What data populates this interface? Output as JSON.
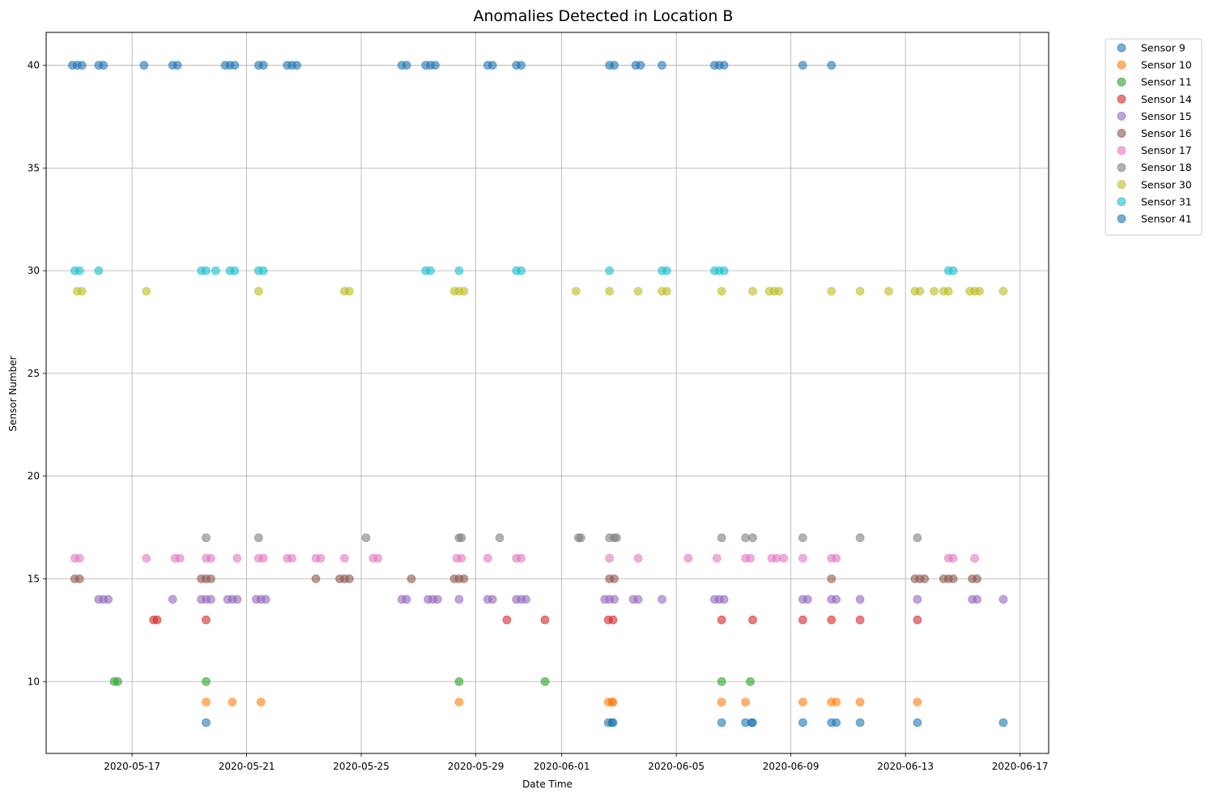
{
  "chart_data": {
    "type": "scatter",
    "title": "Anomalies Detected in Location B",
    "xlabel": "Date Time",
    "ylabel": "Sensor Number",
    "xlim": [
      "2020-05-14T00:00",
      "2020-06-18T00:00"
    ],
    "ylim": [
      6.5,
      41.6
    ],
    "x_ticks": [
      "2020-05-17",
      "2020-05-21",
      "2020-05-25",
      "2020-05-29",
      "2020-06-01",
      "2020-06-05",
      "2020-06-09",
      "2020-06-13",
      "2020-06-17"
    ],
    "y_ticks": [
      10,
      15,
      20,
      25,
      30,
      35,
      40
    ],
    "grid": true,
    "legend_position": "outside-upper-right",
    "series": [
      {
        "name": "Sensor 9",
        "color": "#1f77b4",
        "y": 8,
        "x": [
          "2020-05-19T14:00",
          "2020-06-02T15:00",
          "2020-06-02T18:00",
          "2020-06-02T19:00",
          "2020-06-06T14:00",
          "2020-06-07T10:00",
          "2020-06-07T15:00",
          "2020-06-07T16:00",
          "2020-06-09T10:00",
          "2020-06-10T10:00",
          "2020-06-10T14:00",
          "2020-06-11T10:00",
          "2020-06-13T10:00",
          "2020-06-16T10:00"
        ]
      },
      {
        "name": "Sensor 10",
        "color": "#ff7f0e",
        "y": 9,
        "x": [
          "2020-05-19T14:00",
          "2020-05-20T12:00",
          "2020-05-21T12:00",
          "2020-05-28T10:00",
          "2020-06-02T15:00",
          "2020-06-02T18:00",
          "2020-06-02T19:00",
          "2020-06-06T14:00",
          "2020-06-07T10:00",
          "2020-06-09T10:00",
          "2020-06-10T10:00",
          "2020-06-10T14:00",
          "2020-06-11T10:00",
          "2020-06-13T10:00"
        ]
      },
      {
        "name": "Sensor 11",
        "color": "#2ca02c",
        "y": 10,
        "x": [
          "2020-05-16T09:00",
          "2020-05-16T12:00",
          "2020-05-19T14:00",
          "2020-05-28T10:00",
          "2020-05-31T10:00",
          "2020-06-06T14:00",
          "2020-06-07T14:00"
        ]
      },
      {
        "name": "Sensor 14",
        "color": "#d62728",
        "y": 13,
        "x": [
          "2020-05-17T18:00",
          "2020-05-17T21:00",
          "2020-05-19T14:00",
          "2020-05-30T02:00",
          "2020-05-31T10:00",
          "2020-06-02T15:00",
          "2020-06-02T19:00",
          "2020-06-06T14:00",
          "2020-06-07T16:00",
          "2020-06-09T10:00",
          "2020-06-10T10:00",
          "2020-06-11T10:00",
          "2020-06-13T10:00"
        ]
      },
      {
        "name": "Sensor 15",
        "color": "#9467bd",
        "y": 14,
        "x": [
          "2020-05-15T20:00",
          "2020-05-16T00:00",
          "2020-05-16T04:00",
          "2020-05-18T10:00",
          "2020-05-19T10:00",
          "2020-05-19T14:00",
          "2020-05-19T18:00",
          "2020-05-20T08:00",
          "2020-05-20T12:00",
          "2020-05-20T16:00",
          "2020-05-21T08:00",
          "2020-05-21T12:00",
          "2020-05-21T16:00",
          "2020-05-26T10:00",
          "2020-05-26T14:00",
          "2020-05-27T08:00",
          "2020-05-27T12:00",
          "2020-05-27T16:00",
          "2020-05-28T10:00",
          "2020-05-29T10:00",
          "2020-05-29T14:00",
          "2020-05-30T10:00",
          "2020-05-30T14:00",
          "2020-05-30T18:00",
          "2020-06-02T12:00",
          "2020-06-02T16:00",
          "2020-06-02T20:00",
          "2020-06-03T12:00",
          "2020-06-03T16:00",
          "2020-06-04T12:00",
          "2020-06-06T08:00",
          "2020-06-06T12:00",
          "2020-06-06T16:00",
          "2020-06-09T10:00",
          "2020-06-09T14:00",
          "2020-06-10T10:00",
          "2020-06-10T14:00",
          "2020-06-11T10:00",
          "2020-06-13T10:00",
          "2020-06-15T08:00",
          "2020-06-15T12:00",
          "2020-06-16T10:00"
        ]
      },
      {
        "name": "Sensor 16",
        "color": "#8c564b",
        "y": 15,
        "x": [
          "2020-05-15T00:00",
          "2020-05-15T04:00",
          "2020-05-19T10:00",
          "2020-05-19T14:00",
          "2020-05-19T18:00",
          "2020-05-23T10:00",
          "2020-05-24T06:00",
          "2020-05-24T10:00",
          "2020-05-24T14:00",
          "2020-05-26T18:00",
          "2020-05-28T06:00",
          "2020-05-28T10:00",
          "2020-05-28T14:00",
          "2020-06-02T16:00",
          "2020-06-02T20:00",
          "2020-06-10T10:00",
          "2020-06-13T08:00",
          "2020-06-13T12:00",
          "2020-06-13T16:00",
          "2020-06-14T08:00",
          "2020-06-14T12:00",
          "2020-06-14T16:00",
          "2020-06-15T08:00",
          "2020-06-15T12:00"
        ]
      },
      {
        "name": "Sensor 17",
        "color": "#e377c2",
        "y": 16,
        "x": [
          "2020-05-15T00:00",
          "2020-05-15T04:00",
          "2020-05-17T12:00",
          "2020-05-18T12:00",
          "2020-05-18T16:00",
          "2020-05-19T14:00",
          "2020-05-19T18:00",
          "2020-05-20T16:00",
          "2020-05-21T10:00",
          "2020-05-21T14:00",
          "2020-05-22T10:00",
          "2020-05-22T14:00",
          "2020-05-23T10:00",
          "2020-05-23T14:00",
          "2020-05-24T10:00",
          "2020-05-25T10:00",
          "2020-05-25T14:00",
          "2020-05-28T08:00",
          "2020-05-28T12:00",
          "2020-05-29T10:00",
          "2020-05-30T10:00",
          "2020-05-30T14:00",
          "2020-06-02T16:00",
          "2020-06-03T16:00",
          "2020-06-05T10:00",
          "2020-06-06T10:00",
          "2020-06-07T10:00",
          "2020-06-07T14:00",
          "2020-06-08T08:00",
          "2020-06-08T12:00",
          "2020-06-08T18:00",
          "2020-06-09T10:00",
          "2020-06-10T10:00",
          "2020-06-10T14:00",
          "2020-06-14T12:00",
          "2020-06-14T16:00",
          "2020-06-15T10:00"
        ]
      },
      {
        "name": "Sensor 18",
        "color": "#7f7f7f",
        "y": 17,
        "x": [
          "2020-05-19T14:00",
          "2020-05-21T10:00",
          "2020-05-25T04:00",
          "2020-05-28T10:00",
          "2020-05-28T12:00",
          "2020-05-29T20:00",
          "2020-06-01T14:00",
          "2020-06-01T16:00",
          "2020-06-02T16:00",
          "2020-06-02T20:00",
          "2020-06-02T22:00",
          "2020-06-06T14:00",
          "2020-06-07T10:00",
          "2020-06-07T16:00",
          "2020-06-09T10:00",
          "2020-06-11T10:00",
          "2020-06-13T10:00"
        ]
      },
      {
        "name": "Sensor 30",
        "color": "#bcbd22",
        "y": 29,
        "x": [
          "2020-05-15T02:00",
          "2020-05-15T06:00",
          "2020-05-17T12:00",
          "2020-05-21T10:00",
          "2020-05-24T10:00",
          "2020-05-24T14:00",
          "2020-05-28T06:00",
          "2020-05-28T10:00",
          "2020-05-28T14:00",
          "2020-06-01T12:00",
          "2020-06-02T16:00",
          "2020-06-03T16:00",
          "2020-06-04T12:00",
          "2020-06-04T16:00",
          "2020-06-06T14:00",
          "2020-06-07T16:00",
          "2020-06-08T06:00",
          "2020-06-08T10:00",
          "2020-06-08T14:00",
          "2020-06-10T10:00",
          "2020-06-11T10:00",
          "2020-06-12T10:00",
          "2020-06-13T08:00",
          "2020-06-13T12:00",
          "2020-06-14T00:00",
          "2020-06-14T08:00",
          "2020-06-14T12:00",
          "2020-06-15T06:00",
          "2020-06-15T10:00",
          "2020-06-15T14:00",
          "2020-06-16T10:00"
        ]
      },
      {
        "name": "Sensor 31",
        "color": "#17becf",
        "y": 30,
        "x": [
          "2020-05-15T00:00",
          "2020-05-15T04:00",
          "2020-05-15T20:00",
          "2020-05-19T10:00",
          "2020-05-19T14:00",
          "2020-05-19T22:00",
          "2020-05-20T10:00",
          "2020-05-20T14:00",
          "2020-05-21T10:00",
          "2020-05-21T14:00",
          "2020-05-27T06:00",
          "2020-05-27T10:00",
          "2020-05-28T10:00",
          "2020-05-30T10:00",
          "2020-05-30T14:00",
          "2020-06-02T16:00",
          "2020-06-04T12:00",
          "2020-06-04T16:00",
          "2020-06-06T08:00",
          "2020-06-06T12:00",
          "2020-06-06T16:00",
          "2020-06-14T12:00",
          "2020-06-14T16:00"
        ]
      },
      {
        "name": "Sensor 41",
        "color": "#1f77b4",
        "y": 40,
        "x": [
          "2020-05-14T22:00",
          "2020-05-15T02:00",
          "2020-05-15T06:00",
          "2020-05-15T20:00",
          "2020-05-16T00:00",
          "2020-05-17T10:00",
          "2020-05-18T10:00",
          "2020-05-18T14:00",
          "2020-05-20T06:00",
          "2020-05-20T10:00",
          "2020-05-20T14:00",
          "2020-05-21T10:00",
          "2020-05-21T14:00",
          "2020-05-22T10:00",
          "2020-05-22T14:00",
          "2020-05-22T18:00",
          "2020-05-26T10:00",
          "2020-05-26T14:00",
          "2020-05-27T06:00",
          "2020-05-27T10:00",
          "2020-05-27T14:00",
          "2020-05-29T10:00",
          "2020-05-29T14:00",
          "2020-05-30T10:00",
          "2020-05-30T14:00",
          "2020-06-02T16:00",
          "2020-06-02T20:00",
          "2020-06-03T14:00",
          "2020-06-03T18:00",
          "2020-06-04T12:00",
          "2020-06-06T08:00",
          "2020-06-06T12:00",
          "2020-06-06T16:00",
          "2020-06-09T10:00",
          "2020-06-10T10:00"
        ]
      }
    ]
  }
}
